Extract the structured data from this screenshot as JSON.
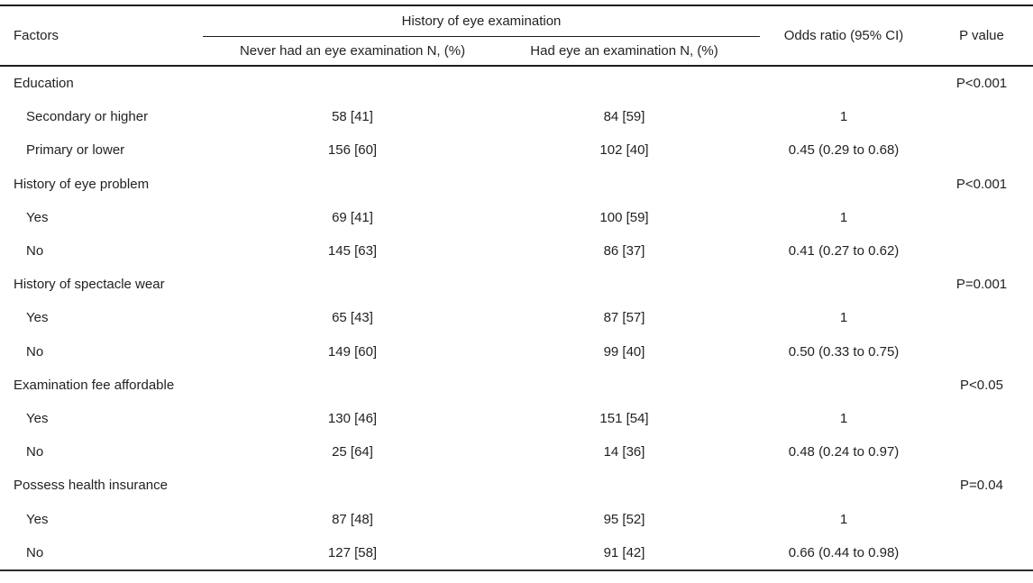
{
  "colors": {
    "text": "#231f20",
    "rule": "#1c1c1c",
    "background": "#ffffff"
  },
  "table": {
    "header": {
      "factors": "Factors",
      "group": "History of eye examination",
      "col_never": "Never had an eye examination N, (%)",
      "col_had": "Had eye an examination N, (%)",
      "col_odds_ratio": "Odds ratio (95% CI)",
      "col_p_value": "P value"
    },
    "sections": [
      {
        "label": "Education",
        "p_value": "P<0.001",
        "rows": [
          {
            "label": "Secondary or higher",
            "never": "58 [41]",
            "had": "84 [59]",
            "or": "1"
          },
          {
            "label": "Primary or lower",
            "never": "156 [60]",
            "had": "102 [40]",
            "or": "0.45 (0.29 to 0.68)"
          }
        ]
      },
      {
        "label": "History of eye problem",
        "p_value": "P<0.001",
        "rows": [
          {
            "label": "Yes",
            "never": "69 [41]",
            "had": "100 [59]",
            "or": "1"
          },
          {
            "label": "No",
            "never": "145 [63]",
            "had": "86 [37]",
            "or": "0.41 (0.27 to 0.62)"
          }
        ]
      },
      {
        "label": "History of spectacle wear",
        "p_value": "P=0.001",
        "rows": [
          {
            "label": "Yes",
            "never": "65 [43]",
            "had": "87 [57]",
            "or": "1"
          },
          {
            "label": "No",
            "never": "149 [60]",
            "had": "99 [40]",
            "or": "0.50 (0.33 to 0.75)"
          }
        ]
      },
      {
        "label": "Examination fee affordable",
        "p_value": "P<0.05",
        "rows": [
          {
            "label": "Yes",
            "never": "130 [46]",
            "had": "151 [54]",
            "or": "1"
          },
          {
            "label": "No",
            "never": "25 [64]",
            "had": "14 [36]",
            "or": "0.48 (0.24 to 0.97)"
          }
        ]
      },
      {
        "label": "Possess health insurance",
        "p_value": "P=0.04",
        "rows": [
          {
            "label": "Yes",
            "never": "87 [48]",
            "had": "95 [52]",
            "or": "1"
          },
          {
            "label": "No",
            "never": "127 [58]",
            "had": "91 [42]",
            "or": "0.66 (0.44 to 0.98)"
          }
        ]
      }
    ]
  }
}
